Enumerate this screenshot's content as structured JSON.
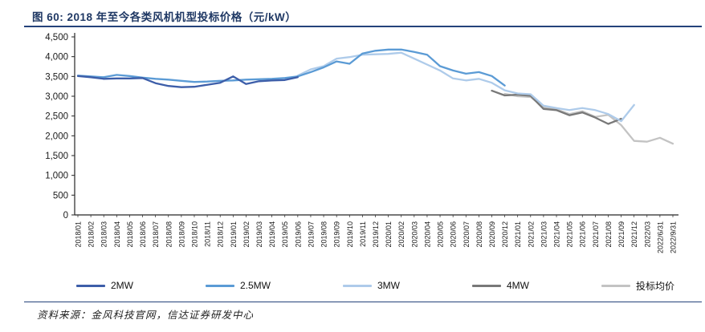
{
  "figure": {
    "title": "图 60:  2018 年至今各类风机机型投标价格（元/kW）",
    "source": "资料来源：金风科技官网，信达证券研发中心"
  },
  "colors": {
    "title_navy": "#1F3864",
    "rule_navy": "#24427A",
    "axis_black": "#262626",
    "series_2mw": "#3D5EA9",
    "series_2_5mw": "#5B9BD5",
    "series_3mw": "#AECBEA",
    "series_4mw": "#787878",
    "series_avg": "#C3C3C3"
  },
  "chart_data": {
    "type": "line",
    "title": "2018 年至今各类风机机型投标价格（元/kW）",
    "xlabel": "",
    "ylabel": "",
    "ylim": [
      0,
      4500
    ],
    "y_tick_step": 500,
    "y_tick_labels": [
      "0",
      "500",
      "1,000",
      "1,500",
      "2,000",
      "2,500",
      "3,000",
      "3,500",
      "4,000",
      "4,500"
    ],
    "grid": false,
    "legend_position": "bottom",
    "categories": [
      "2018/01",
      "2018/02",
      "2018/03",
      "2018/04",
      "2018/05",
      "2018/06",
      "2018/07",
      "2018/08",
      "2018/09",
      "2018/10",
      "2018/11",
      "2018/12",
      "2019/01",
      "2019/02",
      "2019/03",
      "2019/04",
      "2019/05",
      "2019/06",
      "2019/07",
      "2019/08",
      "2019/09",
      "2019/10",
      "2019/11",
      "2019/12",
      "2020/01",
      "2020/02",
      "2020/03",
      "2020/04",
      "2020/05",
      "2020/06",
      "2020/07",
      "2020/08",
      "2020/09",
      "2020/12",
      "2021/01",
      "2021/02",
      "2021/03",
      "2021/04",
      "2021/05",
      "2021/06",
      "2021/07",
      "2021/08",
      "2021/09",
      "2021/12",
      "2022/03",
      "2022/6/31",
      "2022/9/31"
    ],
    "series": [
      {
        "name": "投标均价",
        "color": "#C3C3C3",
        "values": [
          null,
          null,
          null,
          null,
          null,
          null,
          null,
          null,
          null,
          null,
          null,
          null,
          null,
          null,
          null,
          null,
          null,
          null,
          null,
          null,
          null,
          null,
          null,
          null,
          null,
          null,
          null,
          null,
          null,
          null,
          null,
          null,
          null,
          3060,
          3000,
          2980,
          2720,
          2670,
          2550,
          2620,
          2480,
          2530,
          2270,
          1870,
          1850,
          1950,
          1800
        ]
      },
      {
        "name": "4MW",
        "color": "#787878",
        "values": [
          null,
          null,
          null,
          null,
          null,
          null,
          null,
          null,
          null,
          null,
          null,
          null,
          null,
          null,
          null,
          null,
          null,
          null,
          null,
          null,
          null,
          null,
          null,
          null,
          null,
          null,
          null,
          null,
          null,
          null,
          null,
          null,
          3140,
          3020,
          3040,
          3010,
          2680,
          2650,
          2520,
          2590,
          2460,
          2300,
          2430,
          null,
          null,
          null,
          null
        ]
      },
      {
        "name": "3MW",
        "color": "#AECBEA",
        "values": [
          null,
          null,
          null,
          null,
          null,
          null,
          null,
          null,
          null,
          null,
          null,
          null,
          null,
          null,
          null,
          null,
          null,
          3520,
          3680,
          3760,
          3950,
          3990,
          4050,
          4060,
          4070,
          4100,
          3950,
          3800,
          3650,
          3450,
          3400,
          3440,
          3340,
          3150,
          3070,
          3050,
          2760,
          2700,
          2650,
          2700,
          2650,
          2550,
          2370,
          2780,
          null,
          null,
          null
        ]
      },
      {
        "name": "2.5MW",
        "color": "#5B9BD5",
        "values": [
          3520,
          3500,
          3480,
          3540,
          3510,
          3470,
          3440,
          3420,
          3390,
          3360,
          3370,
          3390,
          3400,
          3420,
          3430,
          3440,
          3460,
          3500,
          3610,
          3730,
          3880,
          3820,
          4080,
          4150,
          4180,
          4180,
          4120,
          4050,
          3760,
          3650,
          3570,
          3610,
          3510,
          3270,
          null,
          null,
          null,
          null,
          null,
          null,
          null,
          null,
          null,
          null,
          null,
          null,
          null
        ]
      },
      {
        "name": "2MW",
        "color": "#3D5EA9",
        "values": [
          3510,
          3480,
          3440,
          3450,
          3450,
          3460,
          3330,
          3260,
          3230,
          3240,
          3290,
          3340,
          3500,
          3310,
          3380,
          3400,
          3410,
          3480,
          null,
          null,
          null,
          null,
          null,
          null,
          null,
          null,
          null,
          null,
          null,
          null,
          null,
          null,
          null,
          null,
          null,
          null,
          null,
          null,
          null,
          null,
          null,
          null,
          null,
          null,
          null,
          null,
          null
        ]
      }
    ],
    "legend_order": [
      "2MW",
      "2.5MW",
      "3MW",
      "4MW",
      "投标均价"
    ]
  }
}
